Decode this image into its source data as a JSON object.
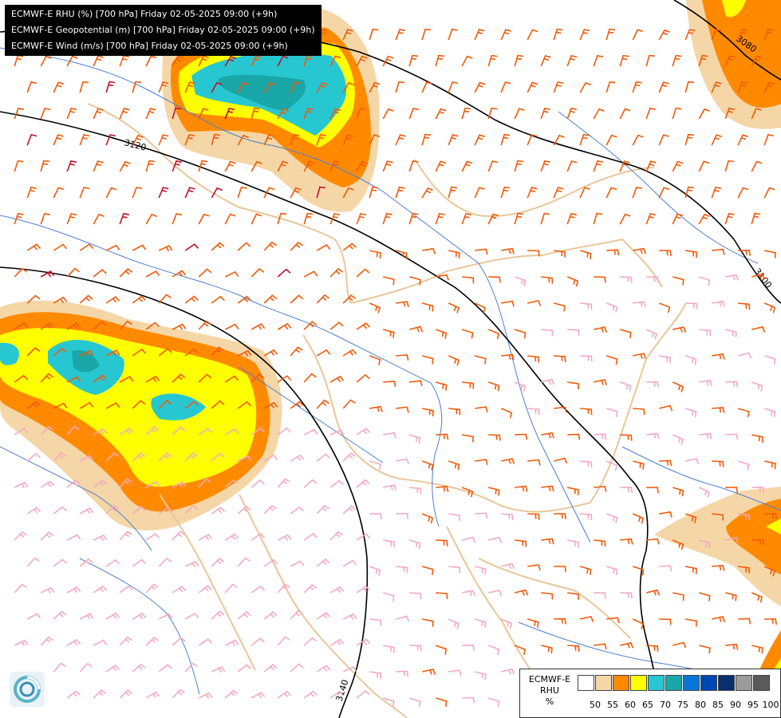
{
  "header": {
    "lines": [
      "ECMWF-E RHU (%) [700 hPa] Friday 02-05-2025 09:00 (+9h)",
      "ECMWF-E Geopotential (m) [700 hPa] Friday 02-05-2025 09:00 (+9h)",
      "ECMWF-E Wind (m/s) [700 hPa] Friday 02-05-2025 09:00 (+9h)"
    ]
  },
  "legend": {
    "title_lines": [
      "ECMWF-E",
      "RHU",
      "%"
    ],
    "colors": [
      "#ffffff",
      "#f5d6a6",
      "#ff8a00",
      "#ffff00",
      "#27c7d2",
      "#1aa7a7",
      "#0a74d8",
      "#0047b3",
      "#0a2f6e",
      "#9b9b9b",
      "#5a5a5a"
    ],
    "ticks": [
      "50",
      "55",
      "60",
      "65",
      "70",
      "75",
      "80",
      "85",
      "90",
      "95",
      "100"
    ]
  },
  "contours": {
    "labels": [
      "3080",
      "3100",
      "3120",
      "3140"
    ]
  },
  "logo": {
    "icon": "ecmwf-swirl-icon"
  }
}
